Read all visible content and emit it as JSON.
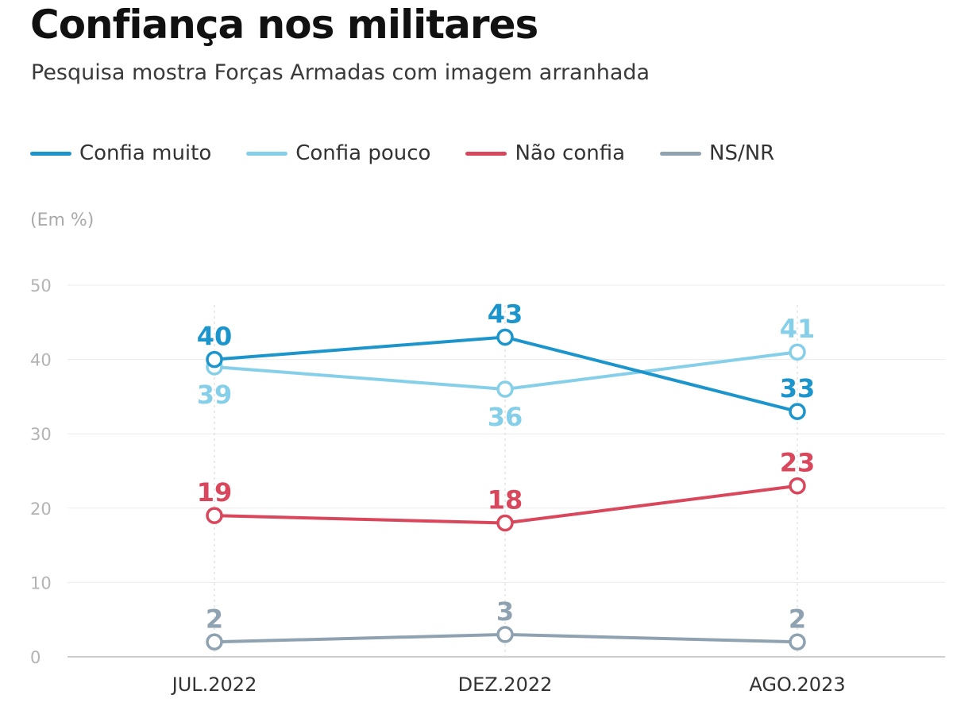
{
  "chart_data": {
    "type": "line",
    "title": "Confiança nos militares",
    "subtitle": "Pesquisa mostra Forças Armadas com imagem arranhada",
    "unit_label": "(Em %)",
    "categories": [
      "JUL.2022",
      "DEZ.2022",
      "AGO.2023"
    ],
    "yticks": [
      0,
      10,
      20,
      30,
      40,
      50
    ],
    "ylim": [
      0,
      50
    ],
    "grid": true,
    "legend_position": "top-left",
    "series": [
      {
        "name": "Confia muito",
        "color": "#1b95cc",
        "values": [
          40,
          43,
          33
        ],
        "label_pos": [
          "above",
          "above",
          "above"
        ]
      },
      {
        "name": "Confia pouco",
        "color": "#86cfe9",
        "values": [
          39,
          36,
          41
        ],
        "label_pos": [
          "below",
          "below",
          "above"
        ]
      },
      {
        "name": "Não confia",
        "color": "#d9475c",
        "values": [
          19,
          18,
          23
        ],
        "label_pos": [
          "above",
          "above",
          "above"
        ]
      },
      {
        "name": "NS/NR",
        "color": "#8fa2b2",
        "values": [
          2,
          3,
          2
        ],
        "label_pos": [
          "above",
          "above",
          "above"
        ]
      }
    ]
  }
}
